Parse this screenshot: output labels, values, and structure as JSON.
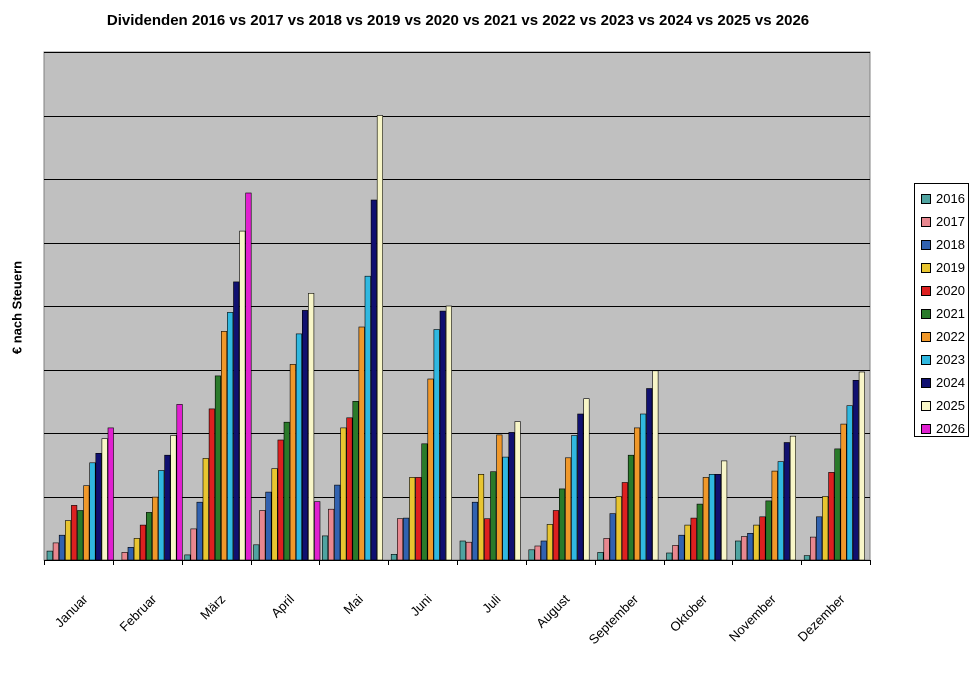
{
  "chart_data": {
    "type": "bar",
    "title": "Dividenden 2016 vs 2017 vs 2018 vs 2019 vs 2020 vs 2021 vs 2022 vs 2023 vs 2024 vs 2025 vs 2026",
    "ylabel": "€ nach Steuern",
    "xlabel": "",
    "ylim": [
      0,
      8
    ],
    "y_ticks_labeled": false,
    "grid": true,
    "legend_position": "right",
    "categories": [
      "Januar",
      "Februar",
      "März",
      "April",
      "Mai",
      "Juni",
      "Juli",
      "August",
      "September",
      "Oktober",
      "November",
      "Dezember"
    ],
    "series": [
      {
        "name": "2016",
        "color": "#4fa3a0",
        "values": [
          0.14,
          0,
          0.08,
          0.24,
          0.38,
          0.09,
          0.3,
          0.16,
          0.12,
          0.11,
          0.3,
          0.07
        ]
      },
      {
        "name": "2017",
        "color": "#e8878f",
        "values": [
          0.27,
          0.12,
          0.49,
          0.78,
          0.8,
          0.65,
          0.28,
          0.22,
          0.34,
          0.23,
          0.37,
          0.36
        ]
      },
      {
        "name": "2018",
        "color": "#3162b0",
        "values": [
          0.39,
          0.2,
          0.91,
          1.07,
          1.18,
          0.66,
          0.91,
          0.3,
          0.73,
          0.39,
          0.42,
          0.68
        ]
      },
      {
        "name": "2019",
        "color": "#e8c530",
        "values": [
          0.62,
          0.34,
          1.6,
          1.44,
          2.08,
          1.3,
          1.35,
          0.56,
          1.0,
          0.55,
          0.55,
          1.0
        ]
      },
      {
        "name": "2020",
        "color": "#dd2020",
        "values": [
          0.86,
          0.55,
          2.38,
          1.89,
          2.24,
          1.3,
          0.65,
          0.78,
          1.22,
          0.66,
          0.68,
          1.38
        ]
      },
      {
        "name": "2021",
        "color": "#2a7a2a",
        "values": [
          0.78,
          0.75,
          2.9,
          2.17,
          2.5,
          1.83,
          1.39,
          1.12,
          1.65,
          0.88,
          0.93,
          1.75
        ]
      },
      {
        "name": "2022",
        "color": "#f0982a",
        "values": [
          1.17,
          0.99,
          3.6,
          3.08,
          3.67,
          2.85,
          1.97,
          1.61,
          2.08,
          1.3,
          1.4,
          2.14
        ]
      },
      {
        "name": "2023",
        "color": "#30b8e0",
        "values": [
          1.53,
          1.41,
          3.9,
          3.56,
          4.47,
          3.63,
          1.62,
          1.96,
          2.3,
          1.35,
          1.55,
          2.43
        ]
      },
      {
        "name": "2024",
        "color": "#101070",
        "values": [
          1.68,
          1.65,
          4.38,
          3.93,
          5.67,
          3.92,
          2.01,
          2.3,
          2.7,
          1.35,
          1.85,
          2.83
        ]
      },
      {
        "name": "2025",
        "color": "#f8f6c8",
        "values": [
          1.91,
          1.96,
          5.18,
          4.2,
          7.0,
          4.0,
          2.18,
          2.54,
          2.98,
          1.56,
          1.95,
          2.96
        ]
      },
      {
        "name": "2026",
        "color": "#e020d0",
        "values": [
          2.08,
          2.45,
          5.78,
          0.92,
          null,
          null,
          null,
          null,
          null,
          null,
          null,
          null
        ]
      }
    ]
  }
}
